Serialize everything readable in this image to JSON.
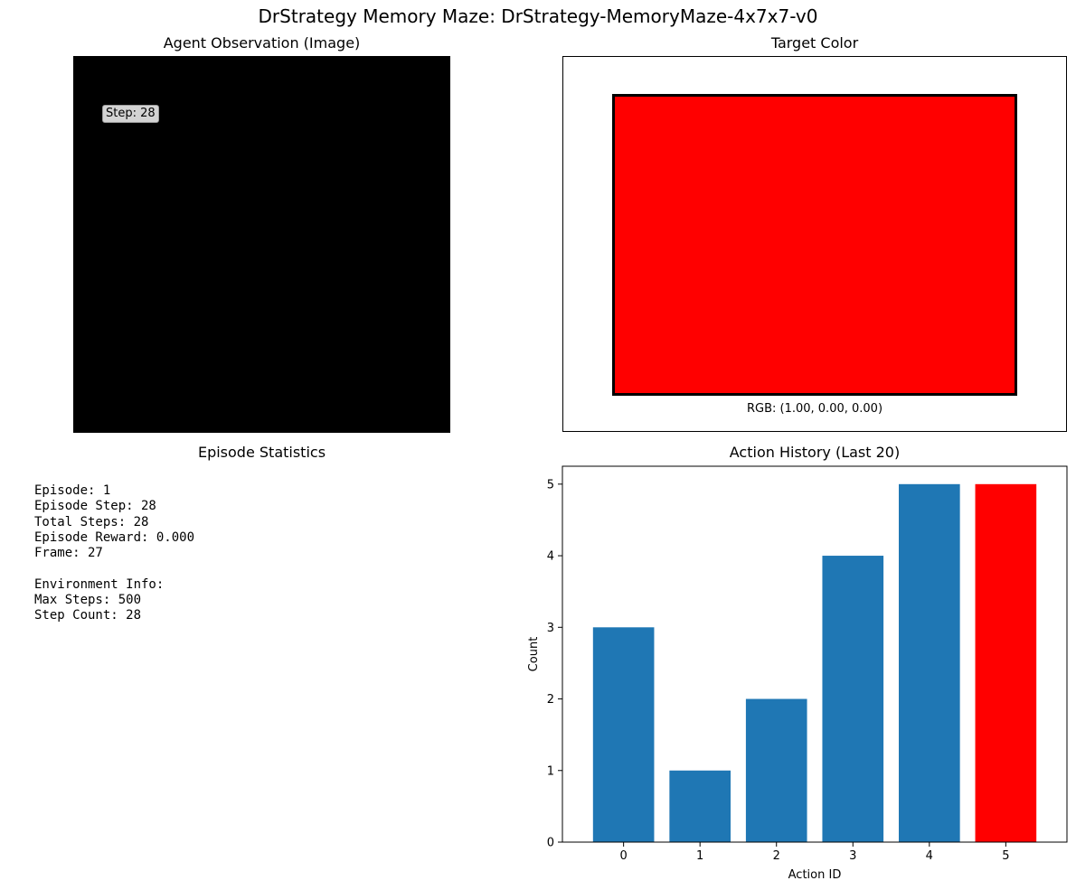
{
  "figure": {
    "suptitle": "DrStrategy Memory Maze: DrStrategy-MemoryMaze-4x7x7-v0"
  },
  "observation": {
    "title": "Agent Observation (Image)",
    "step_label": "Step: 28",
    "image_color": "#000000"
  },
  "target": {
    "title": "Target Color",
    "swatch_color": "#ff0000",
    "rgb_label": "RGB: (1.00, 0.00, 0.00)"
  },
  "stats": {
    "title": "Episode Statistics",
    "lines": [
      "Episode: 1",
      "Episode Step: 28",
      "Total Steps: 28",
      "Episode Reward: 0.000",
      "Frame: 27",
      "",
      "Environment Info:",
      "Max Steps: 500",
      "Step Count: 28"
    ]
  },
  "chart_data": {
    "type": "bar",
    "title": "Action History (Last 20)",
    "xlabel": "Action ID",
    "ylabel": "Count",
    "categories": [
      "0",
      "1",
      "2",
      "3",
      "4",
      "5"
    ],
    "values": [
      3,
      1,
      2,
      4,
      5,
      5
    ],
    "colors": [
      "#1f77b4",
      "#1f77b4",
      "#1f77b4",
      "#1f77b4",
      "#1f77b4",
      "#ff0000"
    ],
    "highlighted_category": "5",
    "ylim": [
      0,
      5.25
    ],
    "yticks": [
      0,
      1,
      2,
      3,
      4,
      5
    ],
    "grid": false,
    "legend": "none"
  }
}
